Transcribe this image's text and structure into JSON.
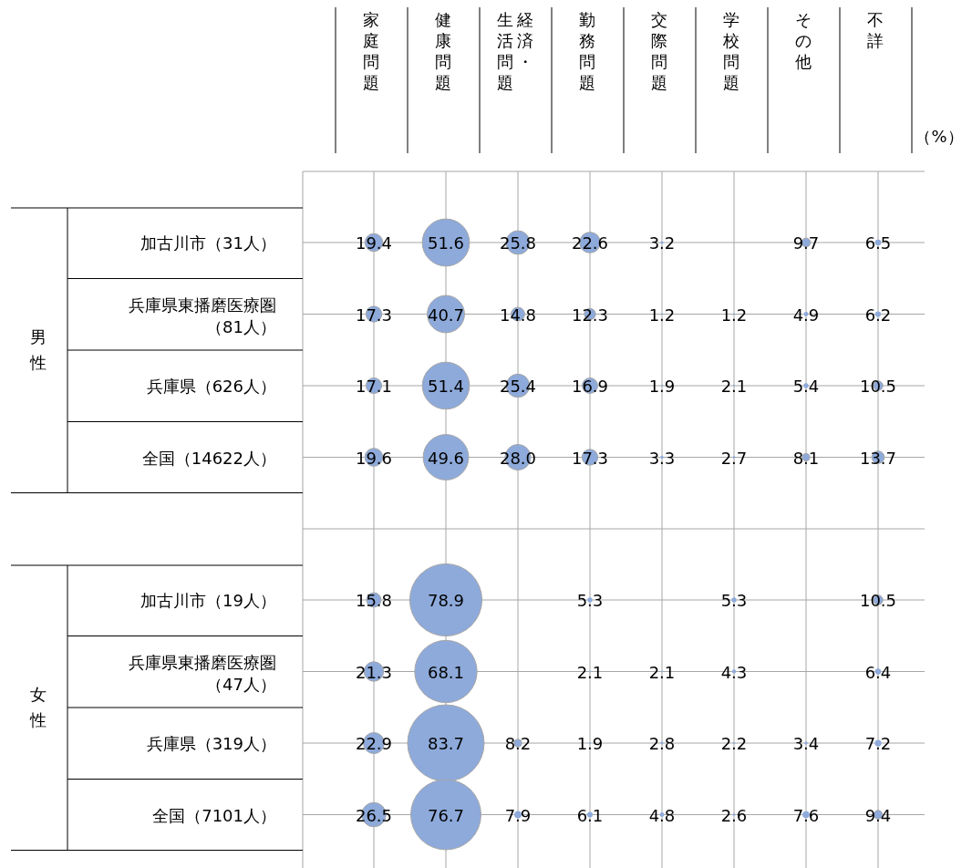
{
  "chart_data": [
    {
      "type": "heatmap",
      "ylabel": "男性",
      "categories": [
        "家庭問題",
        "健康問題",
        "経済・生活問題",
        "勤務問題",
        "交際問題",
        "学校問題",
        "その他",
        "不詳"
      ],
      "y_categories": [
        "加古川市（31人）",
        "兵庫県東播磨医療圏（81人）",
        "兵庫県（626人）",
        "全国（14622人）"
      ],
      "cells": [
        [
          19.4,
          51.6,
          25.8,
          22.6,
          3.2,
          null,
          9.7,
          6.5
        ],
        [
          17.3,
          40.7,
          14.8,
          12.3,
          1.2,
          1.2,
          4.9,
          6.2
        ],
        [
          17.1,
          51.4,
          25.4,
          16.9,
          1.9,
          2.1,
          5.4,
          10.5
        ],
        [
          19.6,
          49.6,
          28.0,
          17.3,
          3.3,
          2.7,
          8.1,
          13.7
        ]
      ],
      "cell_labels": [
        [
          "19.4",
          "51.6",
          "25.8",
          "22.6",
          "3.2",
          null,
          "9.7",
          "6.5"
        ],
        [
          "17.3",
          "40.7",
          "14.8",
          "12.3",
          "1.2",
          "1.2",
          "4.9",
          "6.2"
        ],
        [
          "17.1",
          "51.4",
          "25.4",
          "16.9",
          "1.9",
          "2.1",
          "5.4",
          "10.5"
        ],
        [
          "19.6",
          "49.6",
          "28.0",
          "17.3",
          "3.3",
          "2.7",
          "8.1",
          "13.7"
        ]
      ],
      "color": "#8eaadb",
      "grid": true,
      "annotations": [
        "（%）"
      ]
    },
    {
      "type": "heatmap",
      "ylabel": "女性",
      "categories": [
        "家庭問題",
        "健康問題",
        "経済・生活問題",
        "勤務問題",
        "交際問題",
        "学校問題",
        "その他",
        "不詳"
      ],
      "y_categories": [
        "加古川市（19人）",
        "兵庫県東播磨医療圏（47人）",
        "兵庫県（319人）",
        "全国（7101人）"
      ],
      "cells": [
        [
          15.8,
          78.9,
          null,
          5.3,
          null,
          5.3,
          null,
          10.5
        ],
        [
          21.3,
          68.1,
          null,
          2.1,
          2.1,
          4.3,
          null,
          6.4
        ],
        [
          22.9,
          83.7,
          8.2,
          1.9,
          2.8,
          2.2,
          3.4,
          7.2
        ],
        [
          26.5,
          76.7,
          7.9,
          6.1,
          4.8,
          2.6,
          7.6,
          9.4
        ]
      ],
      "cell_labels": [
        [
          "15.8",
          "78.9",
          null,
          "5.3",
          null,
          "5.3",
          null,
          "10.5"
        ],
        [
          "21.3",
          "68.1",
          null,
          "2.1",
          "2.1",
          "4.3",
          null,
          "6.4"
        ],
        [
          "22.9",
          "83.7",
          "8.2",
          "1.9",
          "2.8",
          "2.2",
          "3.4",
          "7.2"
        ],
        [
          "26.5",
          "76.7",
          "7.9",
          "6.1",
          "4.8",
          "2.6",
          "7.6",
          "9.4"
        ]
      ],
      "color": "#8eaadb",
      "grid": true,
      "tick_labels": "y"
    }
  ]
}
